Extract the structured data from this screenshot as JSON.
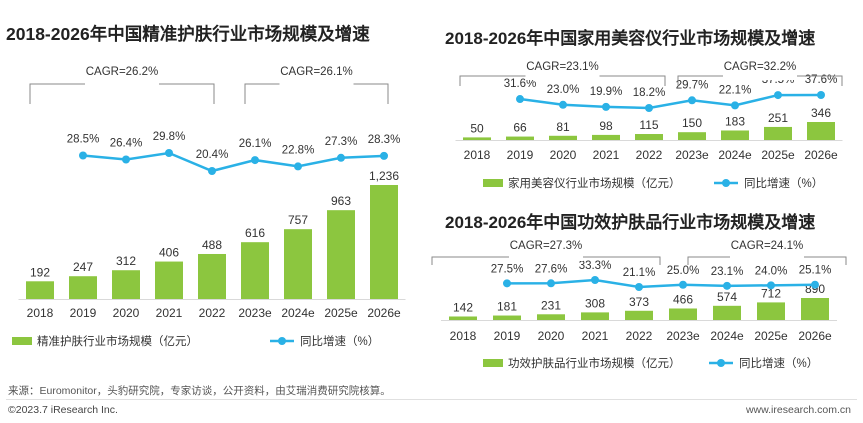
{
  "colors": {
    "bar": "#8cc63f",
    "line": "#2ab1e6",
    "text": "#333333",
    "bracket": "#8a8a8a"
  },
  "charts": [
    {
      "title": "2018-2026年中国精准护肤行业市场规模及增速",
      "legend_bar": "精准护肤行业市场规模（亿元）",
      "legend_line": "同比增速（%）",
      "cagr": [
        "CAGR=26.2%",
        "CAGR=26.1%"
      ]
    },
    {
      "title": "2018-2026年中国家用美容仪行业市场规模及增速",
      "legend_bar": "家用美容仪行业市场规模（亿元）",
      "legend_line": "同比增速（%）",
      "cagr": [
        "CAGR=23.1%",
        "CAGR=32.2%"
      ]
    },
    {
      "title": "2018-2026年中国功效护肤品行业市场规模及增速",
      "legend_bar": "功效护肤品行业市场规模（亿元）",
      "legend_line": "同比增速（%）",
      "cagr": [
        "CAGR=27.3%",
        "CAGR=24.1%"
      ]
    }
  ],
  "chart_data": [
    {
      "type": "bar",
      "title": "2018-2026年中国精准护肤行业市场规模及增速",
      "categories": [
        "2018",
        "2019",
        "2020",
        "2021",
        "2022",
        "2023e",
        "2024e",
        "2025e",
        "2026e"
      ],
      "series": [
        {
          "name": "精准护肤行业市场规模（亿元）",
          "type": "bar",
          "values": [
            192,
            247,
            312,
            406,
            488,
            616,
            757,
            963,
            1236
          ],
          "labels": [
            "192",
            "247",
            "312",
            "406",
            "488",
            "616",
            "757",
            "963",
            "1,236"
          ]
        },
        {
          "name": "同比增速（%）",
          "type": "line",
          "values": [
            null,
            28.5,
            26.4,
            29.8,
            20.4,
            26.1,
            22.8,
            27.3,
            28.3
          ],
          "labels": [
            "",
            "28.5%",
            "26.4%",
            "29.8%",
            "20.4%",
            "26.1%",
            "22.8%",
            "27.3%",
            "28.3%"
          ]
        }
      ],
      "annotations": [
        "CAGR=26.2%",
        "CAGR=26.1%"
      ],
      "legend_position": "bottom"
    },
    {
      "type": "bar",
      "title": "2018-2026年中国家用美容仪行业市场规模及增速",
      "categories": [
        "2018",
        "2019",
        "2020",
        "2021",
        "2022",
        "2023e",
        "2024e",
        "2025e",
        "2026e"
      ],
      "series": [
        {
          "name": "家用美容仪行业市场规模（亿元）",
          "type": "bar",
          "values": [
            50,
            66,
            81,
            98,
            115,
            150,
            183,
            251,
            346
          ],
          "labels": [
            "50",
            "66",
            "81",
            "98",
            "115",
            "150",
            "183",
            "251",
            "346"
          ]
        },
        {
          "name": "同比增速（%）",
          "type": "line",
          "values": [
            null,
            31.6,
            23.0,
            19.9,
            18.2,
            29.7,
            22.1,
            37.5,
            37.6
          ],
          "labels": [
            "",
            "31.6%",
            "23.0%",
            "19.9%",
            "18.2%",
            "29.7%",
            "22.1%",
            "37.5%",
            "37.6%"
          ]
        }
      ],
      "annotations": [
        "CAGR=23.1%",
        "CAGR=32.2%"
      ],
      "legend_position": "bottom"
    },
    {
      "type": "bar",
      "title": "2018-2026年中国功效护肤品行业市场规模及增速",
      "categories": [
        "2018",
        "2019",
        "2020",
        "2021",
        "2022",
        "2023e",
        "2024e",
        "2025e",
        "2026e"
      ],
      "series": [
        {
          "name": "功效护肤品行业市场规模（亿元）",
          "type": "bar",
          "values": [
            142,
            181,
            231,
            308,
            373,
            466,
            574,
            712,
            890
          ],
          "labels": [
            "142",
            "181",
            "231",
            "308",
            "373",
            "466",
            "574",
            "712",
            "890"
          ]
        },
        {
          "name": "同比增速（%）",
          "type": "line",
          "values": [
            null,
            27.5,
            27.6,
            33.3,
            21.1,
            25.0,
            23.1,
            24.0,
            25.1
          ],
          "labels": [
            "",
            "27.5%",
            "27.6%",
            "33.3%",
            "21.1%",
            "25.0%",
            "23.1%",
            "24.0%",
            "25.1%"
          ]
        }
      ],
      "annotations": [
        "CAGR=27.3%",
        "CAGR=24.1%"
      ],
      "legend_position": "bottom"
    }
  ],
  "footer": {
    "source": "来源：Euromonitor，头豹研究院，专家访谈，公开资料，由艾瑞消费研究院核算。",
    "copyright": "©2023.7 iResearch Inc.",
    "website": "www.iresearch.com.cn"
  }
}
